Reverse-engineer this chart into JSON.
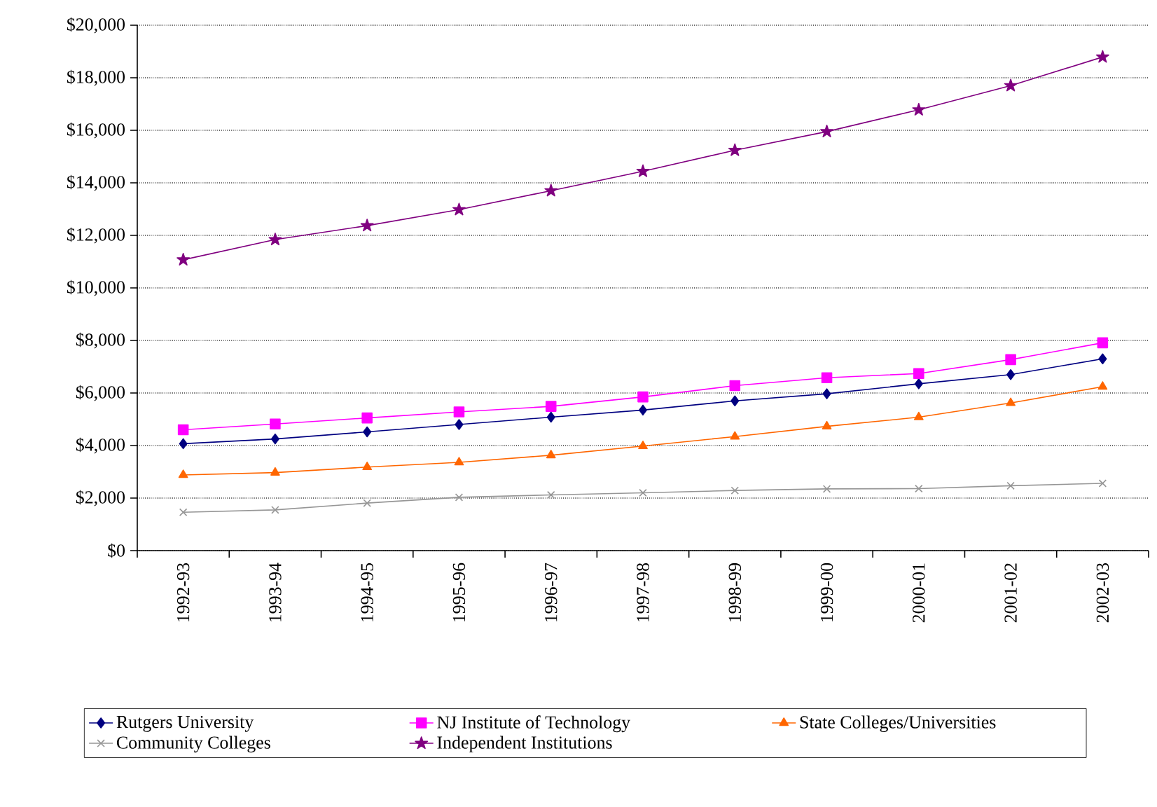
{
  "chart_data": {
    "type": "line",
    "categories": [
      "1992-93",
      "1993-94",
      "1994-95",
      "1995-96",
      "1996-97",
      "1997-98",
      "1998-99",
      "1999-00",
      "2000-01",
      "2001-02",
      "2002-03"
    ],
    "series": [
      {
        "name": "Rutgers University",
        "color": "#000080",
        "marker": "diamond",
        "values": [
          4070,
          4250,
          4520,
          4800,
          5080,
          5350,
          5700,
          5970,
          6350,
          6700,
          7300
        ]
      },
      {
        "name": "NJ Institute of Technology",
        "color": "#ff00ff",
        "marker": "square",
        "values": [
          4600,
          4820,
          5050,
          5280,
          5490,
          5850,
          6280,
          6580,
          6740,
          7270,
          7910
        ]
      },
      {
        "name": "State Colleges/Universities",
        "color": "#ff6600",
        "marker": "triangle",
        "values": [
          2880,
          2970,
          3180,
          3360,
          3630,
          3980,
          4340,
          4730,
          5080,
          5620,
          6240
        ]
      },
      {
        "name": "Community Colleges",
        "color": "#969696",
        "marker": "cross",
        "values": [
          1460,
          1550,
          1810,
          2030,
          2120,
          2200,
          2290,
          2350,
          2360,
          2470,
          2560
        ]
      },
      {
        "name": "Independent Institutions",
        "color": "#800080",
        "marker": "star",
        "values": [
          11070,
          11840,
          12370,
          12980,
          13700,
          14440,
          15240,
          15950,
          16780,
          17700,
          18790
        ]
      }
    ],
    "ylim": [
      0,
      20000
    ],
    "yticks": [
      {
        "value": 0,
        "label": "$0"
      },
      {
        "value": 2000,
        "label": "$2,000"
      },
      {
        "value": 4000,
        "label": "$4,000"
      },
      {
        "value": 6000,
        "label": "$6,000"
      },
      {
        "value": 8000,
        "label": "$8,000"
      },
      {
        "value": 10000,
        "label": "$10,000"
      },
      {
        "value": 12000,
        "label": "$12,000"
      },
      {
        "value": 14000,
        "label": "$14,000"
      },
      {
        "value": 16000,
        "label": "$16,000"
      },
      {
        "value": 18000,
        "label": "$18,000"
      },
      {
        "value": 20000,
        "label": "$20,000"
      }
    ],
    "grid": "y",
    "legend": "bottom",
    "line_style": "solid"
  }
}
